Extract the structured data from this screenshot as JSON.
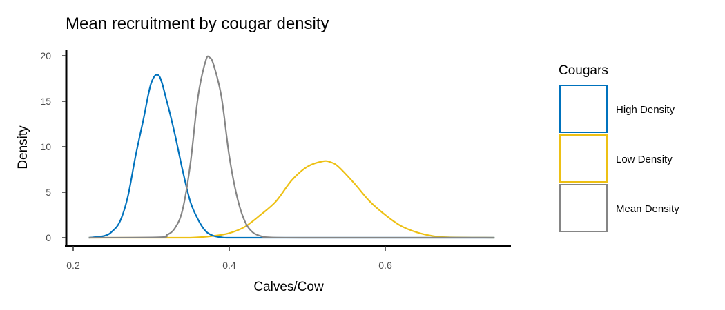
{
  "chart_data": {
    "type": "line",
    "title": "Mean recruitment by cougar density",
    "xlabel": "Calves/Cow",
    "ylabel": "Density",
    "xlim": [
      0.2,
      0.75
    ],
    "ylim": [
      0,
      20.5
    ],
    "x_ticks": [
      "0.2",
      "0.4",
      "0.6"
    ],
    "y_ticks": [
      "0",
      "5",
      "10",
      "15",
      "20"
    ],
    "grid": false,
    "legend": {
      "title": "Cougars",
      "position": "right"
    },
    "series": [
      {
        "name": "High Density",
        "color": "#0072BD",
        "x": [
          0.22,
          0.24,
          0.25,
          0.26,
          0.27,
          0.28,
          0.29,
          0.3,
          0.31,
          0.32,
          0.33,
          0.34,
          0.35,
          0.36,
          0.37,
          0.38,
          0.39,
          0.4,
          0.45,
          0.5,
          0.6,
          0.74
        ],
        "y": [
          0,
          0.2,
          0.7,
          1.8,
          4.5,
          9.0,
          13.0,
          17.0,
          17.8,
          15.0,
          11.5,
          7.5,
          4.0,
          2.0,
          0.7,
          0.2,
          0.05,
          0,
          0,
          0,
          0,
          0
        ]
      },
      {
        "name": "Low Density",
        "color": "#EDC014",
        "x": [
          0.22,
          0.3,
          0.35,
          0.38,
          0.4,
          0.42,
          0.44,
          0.46,
          0.48,
          0.5,
          0.52,
          0.53,
          0.54,
          0.56,
          0.58,
          0.6,
          0.62,
          0.64,
          0.66,
          0.68,
          0.74
        ],
        "y": [
          0,
          0,
          0,
          0.2,
          0.5,
          1.2,
          2.5,
          4.0,
          6.3,
          7.8,
          8.4,
          8.3,
          7.8,
          6.0,
          4.0,
          2.5,
          1.3,
          0.6,
          0.2,
          0.05,
          0
        ]
      },
      {
        "name": "Mean Density",
        "color": "#858585",
        "x": [
          0.22,
          0.31,
          0.32,
          0.33,
          0.34,
          0.35,
          0.36,
          0.37,
          0.375,
          0.38,
          0.39,
          0.4,
          0.41,
          0.42,
          0.43,
          0.44,
          0.45,
          0.5,
          0.74
        ],
        "y": [
          0,
          0.05,
          0.3,
          1.0,
          3.0,
          8.0,
          15.5,
          19.5,
          19.8,
          19.0,
          15.5,
          9.0,
          4.5,
          1.8,
          0.6,
          0.2,
          0.05,
          0,
          0
        ]
      }
    ]
  }
}
